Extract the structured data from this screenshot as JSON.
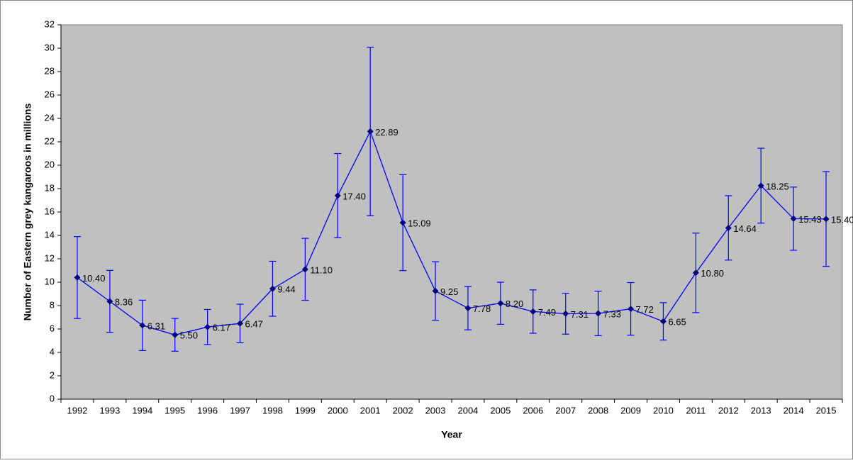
{
  "chart_data": {
    "type": "line",
    "x_label": "Year",
    "y_label": "Number of Eastern grey kangaroos in millions",
    "categories": [
      "1992",
      "1993",
      "1994",
      "1995",
      "1996",
      "1997",
      "1998",
      "1999",
      "2000",
      "2001",
      "2002",
      "2003",
      "2004",
      "2005",
      "2006",
      "2007",
      "2008",
      "2009",
      "2010",
      "2011",
      "2012",
      "2013",
      "2014",
      "2015"
    ],
    "series": [
      {
        "color": "#0000ff",
        "marker_color": "#000080",
        "values": [
          10.4,
          8.36,
          6.31,
          5.5,
          6.17,
          6.47,
          9.44,
          11.1,
          17.4,
          22.89,
          15.09,
          9.25,
          7.78,
          8.2,
          7.49,
          7.31,
          7.33,
          7.72,
          6.65,
          10.8,
          14.64,
          18.25,
          15.43,
          15.4
        ],
        "value_labels": [
          "10.40",
          "8.36",
          "6.31",
          "5.50",
          "6.17",
          "6.47",
          "9.44",
          "11.10",
          "17.40",
          "22.89",
          "15.09",
          "9.25",
          "7.78",
          "8.20",
          "7.49",
          "7.31",
          "7.33",
          "7.72",
          "6.65",
          "10.80",
          "14.64",
          "18.25",
          "15.43",
          "15.40"
        ],
        "errors": [
          3.5,
          2.65,
          2.15,
          1.4,
          1.5,
          1.65,
          2.35,
          2.65,
          3.6,
          7.2,
          4.1,
          2.5,
          1.85,
          1.8,
          1.85,
          1.75,
          1.9,
          2.25,
          1.6,
          3.4,
          2.75,
          3.2,
          2.7,
          4.05
        ]
      }
    ],
    "ylim": [
      0,
      32
    ],
    "yticks": [
      0,
      2,
      4,
      6,
      8,
      10,
      12,
      14,
      16,
      18,
      20,
      22,
      24,
      26,
      28,
      30,
      32
    ],
    "plot_background": "#c0c0c0"
  }
}
